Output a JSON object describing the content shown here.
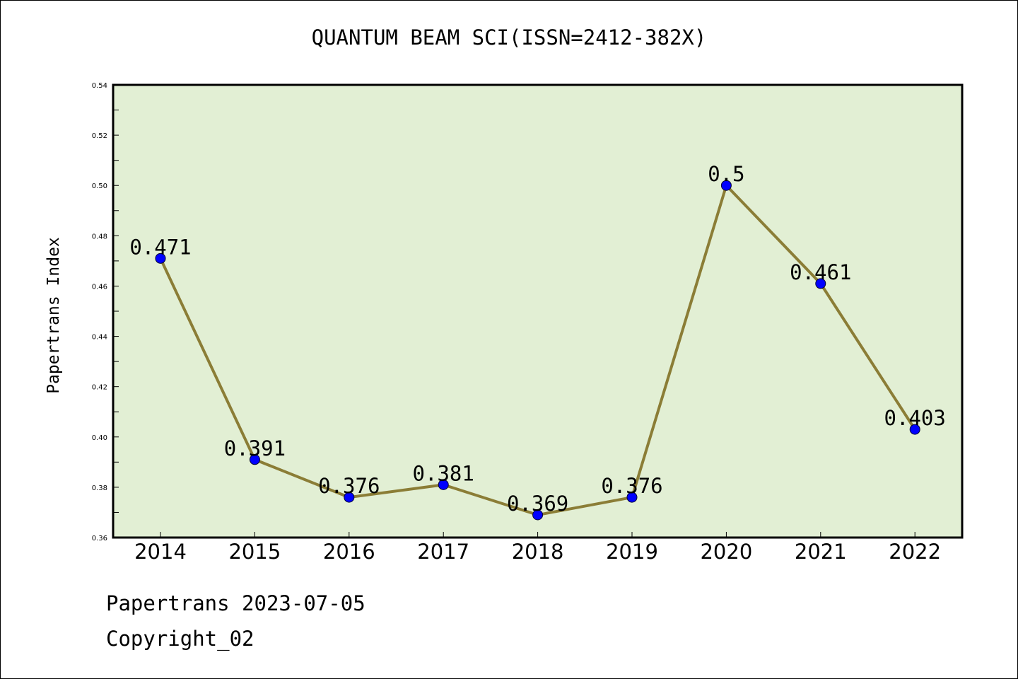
{
  "title": "QUANTUM BEAM SCI(ISSN=2412-382X)",
  "footer": {
    "date_line": "Papertrans 2023-07-05",
    "copyright": "Copyright_02"
  },
  "chart_data": {
    "type": "line",
    "title": "QUANTUM BEAM SCI(ISSN=2412-382X)",
    "xlabel": "",
    "ylabel": "Papertrans Index",
    "categories": [
      "2014",
      "2015",
      "2016",
      "2017",
      "2018",
      "2019",
      "2020",
      "2021",
      "2022"
    ],
    "values": [
      0.471,
      0.391,
      0.376,
      0.381,
      0.369,
      0.376,
      0.5,
      0.461,
      0.403
    ],
    "data_labels": [
      "0.471",
      "0.391",
      "0.376",
      "0.381",
      "0.369",
      "0.376",
      "0.5",
      "0.461",
      "0.403"
    ],
    "ylim": [
      0.36,
      0.54
    ],
    "yticks": [
      "0.36",
      "0.38",
      "0.40",
      "0.42",
      "0.44",
      "0.46",
      "0.48",
      "0.50",
      "0.52",
      "0.54"
    ],
    "grid": false,
    "colors": {
      "plot_background": "#e2efd4",
      "line": "#8b7d36",
      "marker": "#0000ff"
    }
  }
}
